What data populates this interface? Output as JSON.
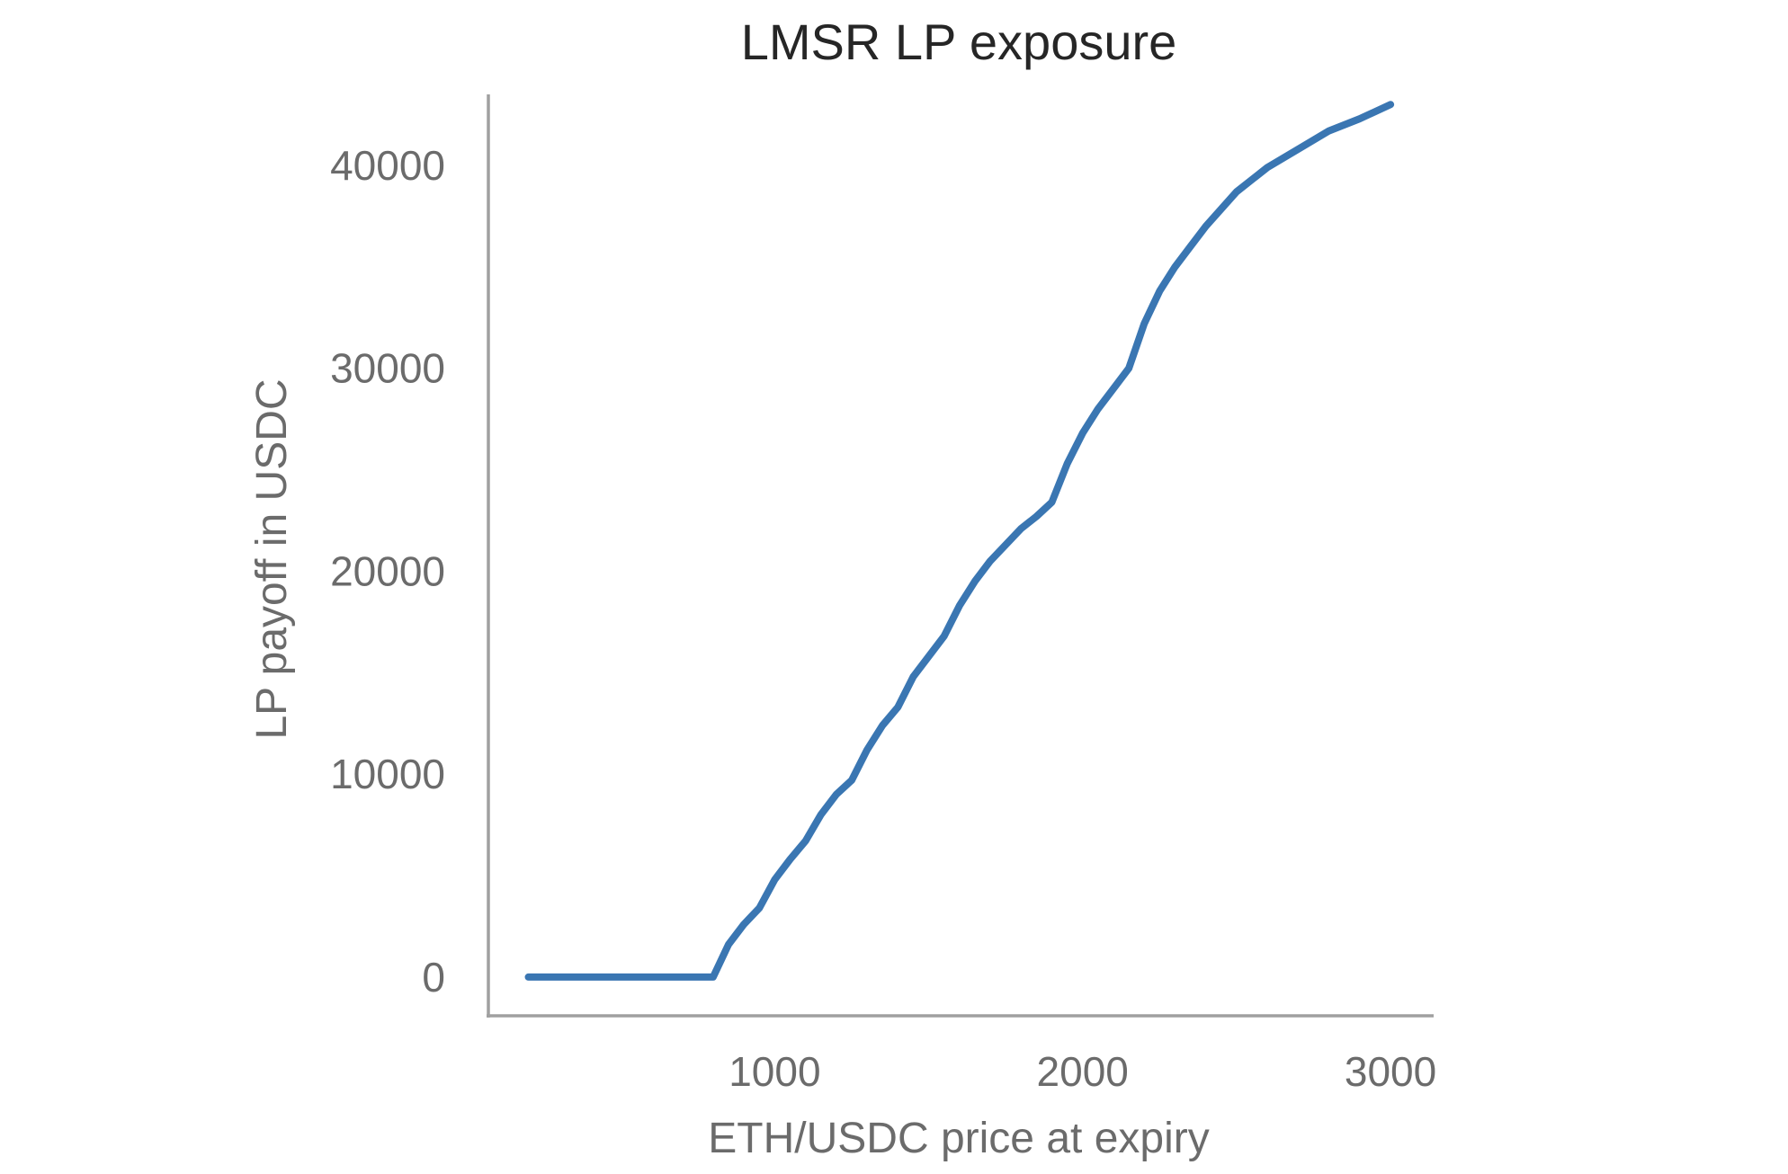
{
  "chart_data": {
    "type": "line",
    "title": "LMSR LP exposure",
    "xlabel": "ETH/USDC price at expiry",
    "ylabel": "LP payoff in USDC",
    "xlim": [
      70,
      3140
    ],
    "ylim": [
      -2000,
      43500
    ],
    "xticks": [
      1000,
      2000,
      3000
    ],
    "xtick_labels": [
      "1000",
      "2000",
      "3000"
    ],
    "yticks": [
      0,
      10000,
      20000,
      30000,
      40000
    ],
    "ytick_labels": [
      "0",
      "10000",
      "20000",
      "30000",
      "40000"
    ],
    "grid": false,
    "series": [
      {
        "color": "#3a76b2",
        "x": [
          200,
          400,
          600,
          700,
          800,
          850,
          900,
          950,
          1000,
          1050,
          1100,
          1150,
          1200,
          1250,
          1300,
          1350,
          1400,
          1450,
          1500,
          1550,
          1600,
          1650,
          1700,
          1750,
          1800,
          1850,
          1900,
          1950,
          2000,
          2050,
          2100,
          2150,
          2200,
          2250,
          2300,
          2350,
          2400,
          2500,
          2600,
          2700,
          2800,
          2900,
          3000
        ],
        "y": [
          0,
          0,
          0,
          0,
          0,
          1600,
          2600,
          3400,
          4800,
          5800,
          6700,
          8000,
          9000,
          9700,
          11200,
          12400,
          13300,
          14800,
          15800,
          16800,
          18300,
          19500,
          20500,
          21300,
          22100,
          22700,
          23400,
          25300,
          26800,
          28000,
          29000,
          30000,
          32200,
          33800,
          35000,
          36000,
          37000,
          38700,
          39900,
          40800,
          41700,
          42300,
          43000
        ]
      }
    ]
  }
}
